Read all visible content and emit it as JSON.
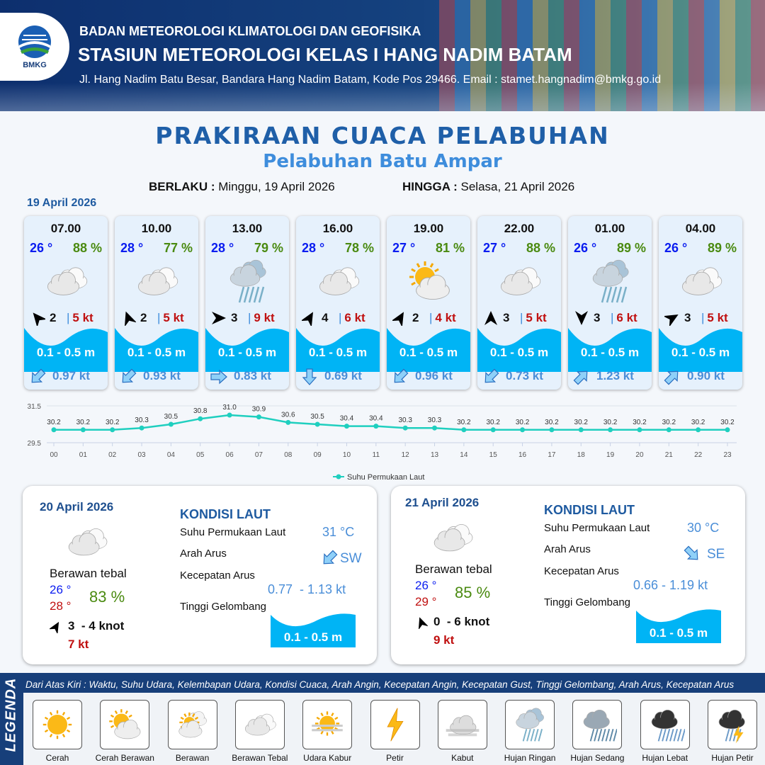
{
  "header": {
    "org": "BADAN METEOROLOGI KLIMATOLOGI DAN GEOFISIKA",
    "station": "STASIUN METEOROLOGI KELAS I HANG NADIM BATAM",
    "address": "Jl. Hang Nadim Batu Besar, Bandara Hang Nadim Batam, Kode Pos 29466. Email : stamet.hangnadim@bmkg.go.id",
    "logo_text": "BMKG"
  },
  "title": "PRAKIRAAN CUACA PELABUHAN",
  "subtitle": "Pelabuhan Batu Ampar",
  "validity": {
    "from_label": "BERLAKU :",
    "from": "Minggu, 19 April 2026",
    "to_label": "HINGGA :",
    "to": "Selasa, 21 April 2026"
  },
  "today": {
    "date": "19 April 2026",
    "forecasts": [
      {
        "time": "07.00",
        "temp": "26 °",
        "hum": "88 %",
        "icon": "berawan-tebal",
        "wind_dir_deg": -40,
        "wind": "2",
        "gust": "5 kt",
        "wave": "0.1 - 0.5 m",
        "current_dir_deg": 225,
        "current": "0.97 kt"
      },
      {
        "time": "10.00",
        "temp": "28 °",
        "hum": "77 %",
        "icon": "berawan-tebal",
        "wind_dir_deg": -20,
        "wind": "2",
        "gust": "5 kt",
        "wave": "0.1 - 0.5 m",
        "current_dir_deg": 225,
        "current": "0.93 kt"
      },
      {
        "time": "13.00",
        "temp": "28 °",
        "hum": "79 %",
        "icon": "hujan-ringan",
        "wind_dir_deg": 90,
        "wind": "3",
        "gust": "9 kt",
        "wave": "0.1 - 0.5 m",
        "current_dir_deg": 90,
        "current": "0.83 kt"
      },
      {
        "time": "16.00",
        "temp": "28 °",
        "hum": "78 %",
        "icon": "berawan-tebal",
        "wind_dir_deg": 30,
        "wind": "4",
        "gust": "6 kt",
        "wave": "0.1 - 0.5 m",
        "current_dir_deg": 180,
        "current": "0.69 kt"
      },
      {
        "time": "19.00",
        "temp": "27 °",
        "hum": "81 %",
        "icon": "cerah-berawan",
        "wind_dir_deg": 30,
        "wind": "2",
        "gust": "4 kt",
        "wave": "0.1 - 0.5 m",
        "current_dir_deg": 225,
        "current": "0.96 kt"
      },
      {
        "time": "22.00",
        "temp": "27 °",
        "hum": "88 %",
        "icon": "berawan-tebal",
        "wind_dir_deg": 0,
        "wind": "3",
        "gust": "5 kt",
        "wave": "0.1 - 0.5 m",
        "current_dir_deg": 225,
        "current": "0.73 kt"
      },
      {
        "time": "01.00",
        "temp": "26 °",
        "hum": "89 %",
        "icon": "hujan-ringan",
        "wind_dir_deg": 180,
        "wind": "3",
        "gust": "6 kt",
        "wave": "0.1 - 0.5 m",
        "current_dir_deg": 45,
        "current": "1.23 kt"
      },
      {
        "time": "04.00",
        "temp": "26 °",
        "hum": "89 %",
        "icon": "berawan-tebal",
        "wind_dir_deg": 60,
        "wind": "3",
        "gust": "5 kt",
        "wave": "0.1 - 0.5 m",
        "current_dir_deg": 45,
        "current": "0.90 kt"
      }
    ]
  },
  "chart_data": {
    "type": "line",
    "categories": [
      "00",
      "01",
      "02",
      "03",
      "04",
      "05",
      "06",
      "07",
      "08",
      "09",
      "10",
      "11",
      "12",
      "13",
      "14",
      "15",
      "16",
      "17",
      "18",
      "19",
      "20",
      "21",
      "22",
      "23"
    ],
    "series": [
      {
        "name": "Suhu Permukaan Laut",
        "values": [
          30.2,
          30.2,
          30.2,
          30.3,
          30.5,
          30.8,
          31.0,
          30.9,
          30.6,
          30.5,
          30.4,
          30.4,
          30.3,
          30.3,
          30.2,
          30.2,
          30.2,
          30.2,
          30.2,
          30.2,
          30.2,
          30.2,
          30.2,
          30.2
        ]
      }
    ],
    "yticks": [
      "29.5",
      "31.5"
    ],
    "ylim": [
      29.5,
      31.5
    ],
    "legend": "bottom",
    "grid": true,
    "color": "#1fcfbf"
  },
  "outlook": [
    {
      "date": "20 April 2026",
      "icon": "berawan-tebal",
      "desc": "Berawan tebal",
      "tmin": "26 °",
      "tmax": "28 °",
      "hum": "83 %",
      "wind_dir_deg": 30,
      "wind": "3  - 4 knot",
      "gust": "7 kt",
      "sea": {
        "title": "KONDISI LAUT",
        "sst_label": "Suhu Permukaan Laut",
        "sst": "31 °C",
        "dir_label": "Arah Arus",
        "dir": "SW",
        "dir_deg": 225,
        "spd_label": "Kecepatan Arus",
        "spd": "0.77  - 1.13 kt",
        "wave_label": "Tinggi Gelombang",
        "wave": "0.1 - 0.5 m"
      }
    },
    {
      "date": "21 April 2026",
      "icon": "berawan-tebal",
      "desc": "Berawan tebal",
      "tmin": "26 °",
      "tmax": "29 °",
      "hum": "85 %",
      "wind_dir_deg": -20,
      "wind": "0  - 6 knot",
      "gust": "9 kt",
      "sea": {
        "title": "KONDISI LAUT",
        "sst_label": "Suhu Permukaan Laut",
        "sst": "30 °C",
        "dir_label": "Arah Arus",
        "dir": "SE",
        "dir_deg": 135,
        "spd_label": "Kecepatan Arus",
        "spd": "0.66 - 1.19 kt",
        "wave_label": "Tinggi Gelombang",
        "wave": "0.1 - 0.5 m"
      }
    }
  ],
  "legend": {
    "title": "LEGENDA",
    "caption": "Dari Atas Kiri : Waktu, Suhu Udara, Kelembapan Udara, Kondisi Cuaca, Arah Angin, Kecepatan Angin, Kecepatan Gust, Tinggi Gelombang, Arah Arus, Kecepatan Arus",
    "items": [
      {
        "icon": "cerah",
        "label": "Cerah"
      },
      {
        "icon": "cerah-berawan",
        "label": "Cerah Berawan"
      },
      {
        "icon": "berawan",
        "label": "Berawan"
      },
      {
        "icon": "berawan-tebal",
        "label": "Berawan Tebal"
      },
      {
        "icon": "udara-kabur",
        "label": "Udara Kabur"
      },
      {
        "icon": "petir",
        "label": "Petir"
      },
      {
        "icon": "kabut",
        "label": "Kabut"
      },
      {
        "icon": "hujan-ringan",
        "label": "Hujan Ringan"
      },
      {
        "icon": "hujan-sedang",
        "label": "Hujan Sedang"
      },
      {
        "icon": "hujan-lebat",
        "label": "Hujan Lebat"
      },
      {
        "icon": "hujan-petir",
        "label": "Hujan Petir"
      }
    ]
  },
  "colors": {
    "wave": "#00b4f5",
    "temp": "#0a1cf0",
    "humidity": "#4a8a10",
    "gust": "#c01010",
    "title": "#1f5fa8"
  }
}
